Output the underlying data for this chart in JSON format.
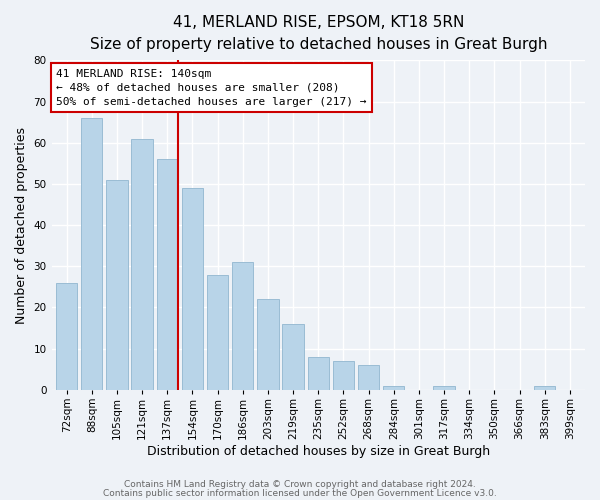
{
  "title": "41, MERLAND RISE, EPSOM, KT18 5RN",
  "subtitle": "Size of property relative to detached houses in Great Burgh",
  "xlabel": "Distribution of detached houses by size in Great Burgh",
  "ylabel": "Number of detached properties",
  "bar_labels": [
    "72sqm",
    "88sqm",
    "105sqm",
    "121sqm",
    "137sqm",
    "154sqm",
    "170sqm",
    "186sqm",
    "203sqm",
    "219sqm",
    "235sqm",
    "252sqm",
    "268sqm",
    "284sqm",
    "301sqm",
    "317sqm",
    "334sqm",
    "350sqm",
    "366sqm",
    "383sqm",
    "399sqm"
  ],
  "bar_values": [
    26,
    66,
    51,
    61,
    56,
    49,
    28,
    31,
    22,
    16,
    8,
    7,
    6,
    1,
    0,
    1,
    0,
    0,
    0,
    1,
    0
  ],
  "bar_color": "#b8d4e8",
  "bar_edge_color": "#9abcd4",
  "vline_index": 4,
  "vline_color": "#cc0000",
  "annotation_line1": "41 MERLAND RISE: 140sqm",
  "annotation_line2": "← 48% of detached houses are smaller (208)",
  "annotation_line3": "50% of semi-detached houses are larger (217) →",
  "ylim": [
    0,
    80
  ],
  "yticks": [
    0,
    10,
    20,
    30,
    40,
    50,
    60,
    70,
    80
  ],
  "footnote1": "Contains HM Land Registry data © Crown copyright and database right 2024.",
  "footnote2": "Contains public sector information licensed under the Open Government Licence v3.0.",
  "background_color": "#eef2f7",
  "grid_color": "#ffffff",
  "title_fontsize": 11,
  "subtitle_fontsize": 9.5,
  "axis_label_fontsize": 9,
  "tick_fontsize": 7.5,
  "annotation_fontsize": 8,
  "footnote_fontsize": 6.5
}
